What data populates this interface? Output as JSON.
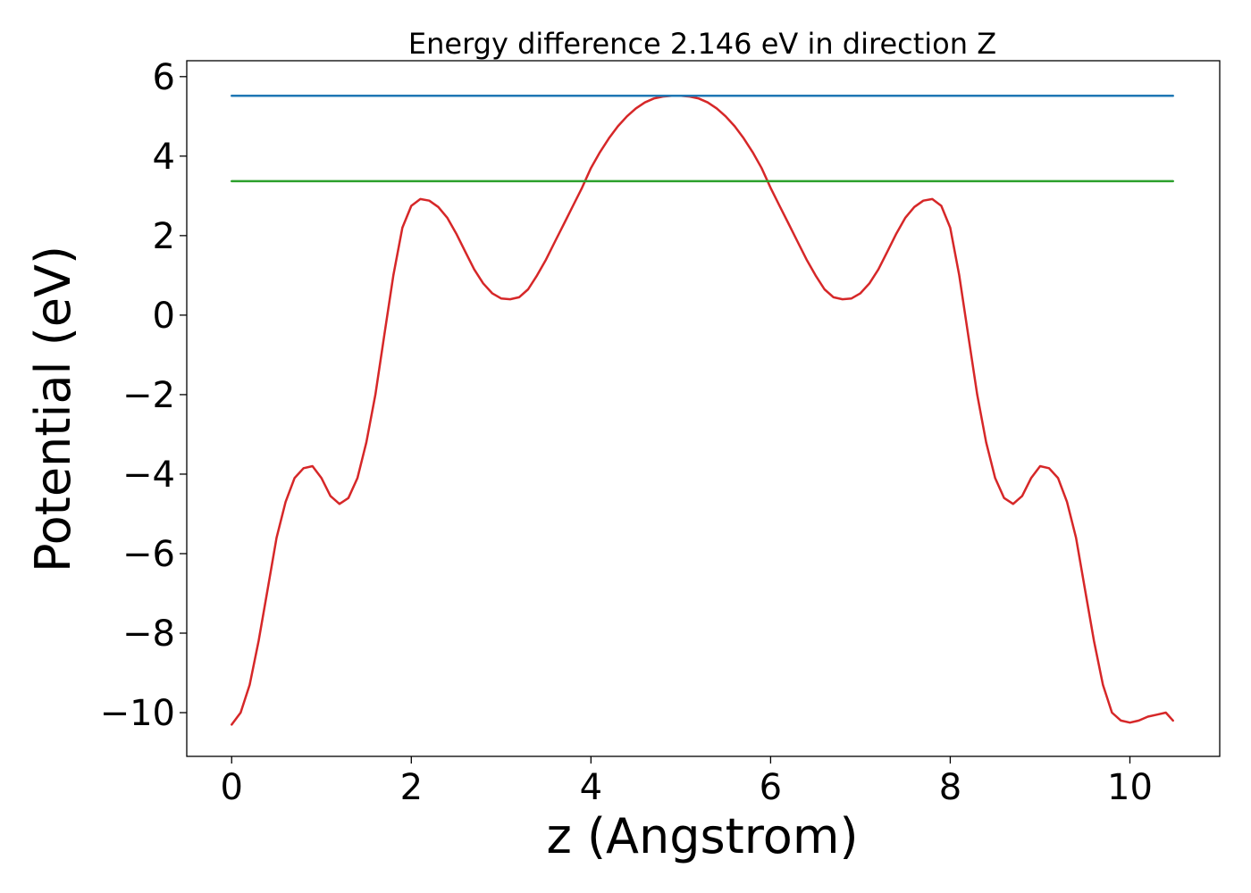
{
  "chart_data": {
    "type": "line",
    "title": "Energy difference 2.146 eV in direction Z",
    "xlabel": "z (Angstrom)",
    "ylabel": "Potential (eV)",
    "xlim": [
      -0.5,
      11.0
    ],
    "ylim": [
      -11.1,
      6.4
    ],
    "x_ticks": [
      0,
      2,
      4,
      6,
      8,
      10
    ],
    "x_tick_labels": [
      "0",
      "2",
      "4",
      "6",
      "8",
      "10"
    ],
    "y_ticks": [
      6,
      4,
      2,
      0,
      -2,
      -4,
      -6,
      -8,
      -10
    ],
    "y_tick_labels": [
      "6",
      "4",
      "2",
      "0",
      "−2",
      "−4",
      "−6",
      "−8",
      "−10"
    ],
    "grid": false,
    "legend": "none",
    "series": [
      {
        "color": "#d62728",
        "x": [
          0,
          0.1,
          0.2,
          0.3,
          0.4,
          0.5,
          0.6,
          0.7,
          0.8,
          0.9,
          1.0,
          1.1,
          1.2,
          1.3,
          1.4,
          1.5,
          1.6,
          1.7,
          1.8,
          1.9,
          2.0,
          2.1,
          2.2,
          2.3,
          2.4,
          2.5,
          2.6,
          2.7,
          2.8,
          2.9,
          3.0,
          3.1,
          3.2,
          3.3,
          3.4,
          3.5,
          3.6,
          3.7,
          3.8,
          3.9,
          4.0,
          4.1,
          4.2,
          4.3,
          4.4,
          4.5,
          4.6,
          4.7,
          4.8,
          4.9,
          5.0,
          5.1,
          5.2,
          5.3,
          5.4,
          5.5,
          5.6,
          5.7,
          5.8,
          5.9,
          6.0,
          6.1,
          6.2,
          6.3,
          6.4,
          6.5,
          6.6,
          6.7,
          6.8,
          6.9,
          7.0,
          7.1,
          7.2,
          7.3,
          7.4,
          7.5,
          7.6,
          7.7,
          7.8,
          7.9,
          8.0,
          8.1,
          8.2,
          8.3,
          8.4,
          8.5,
          8.6,
          8.7,
          8.8,
          8.9,
          9.0,
          9.1,
          9.2,
          9.3,
          9.4,
          9.5,
          9.6,
          9.7,
          9.8,
          9.9,
          10.0,
          10.1,
          10.2,
          10.3,
          10.4,
          10.48
        ],
        "y": [
          -10.3,
          -10.0,
          -9.3,
          -8.2,
          -6.9,
          -5.6,
          -4.7,
          -4.1,
          -3.85,
          -3.8,
          -4.1,
          -4.55,
          -4.75,
          -4.6,
          -4.1,
          -3.2,
          -2.0,
          -0.5,
          1.0,
          2.2,
          2.75,
          2.92,
          2.88,
          2.72,
          2.45,
          2.05,
          1.6,
          1.15,
          0.8,
          0.55,
          0.42,
          0.4,
          0.45,
          0.65,
          1.0,
          1.4,
          1.85,
          2.3,
          2.75,
          3.2,
          3.7,
          4.1,
          4.45,
          4.75,
          5.0,
          5.2,
          5.35,
          5.45,
          5.5,
          5.52,
          5.52,
          5.5,
          5.45,
          5.35,
          5.2,
          5.0,
          4.75,
          4.45,
          4.1,
          3.7,
          3.2,
          2.75,
          2.3,
          1.85,
          1.4,
          1.0,
          0.65,
          0.45,
          0.4,
          0.42,
          0.55,
          0.8,
          1.15,
          1.6,
          2.05,
          2.45,
          2.72,
          2.88,
          2.92,
          2.75,
          2.2,
          1.0,
          -0.5,
          -2.0,
          -3.2,
          -4.1,
          -4.6,
          -4.75,
          -4.55,
          -4.1,
          -3.8,
          -3.85,
          -4.1,
          -4.7,
          -5.6,
          -6.9,
          -8.2,
          -9.3,
          -10.0,
          -10.2,
          -10.25,
          -10.2,
          -10.1,
          -10.05,
          -10.0,
          -10.2
        ]
      },
      {
        "color": "#1f77b4",
        "x": [
          0,
          10.48
        ],
        "y": [
          5.52,
          5.52
        ]
      },
      {
        "color": "#2ca02c",
        "x": [
          0,
          10.48
        ],
        "y": [
          3.37,
          3.37
        ]
      }
    ]
  }
}
